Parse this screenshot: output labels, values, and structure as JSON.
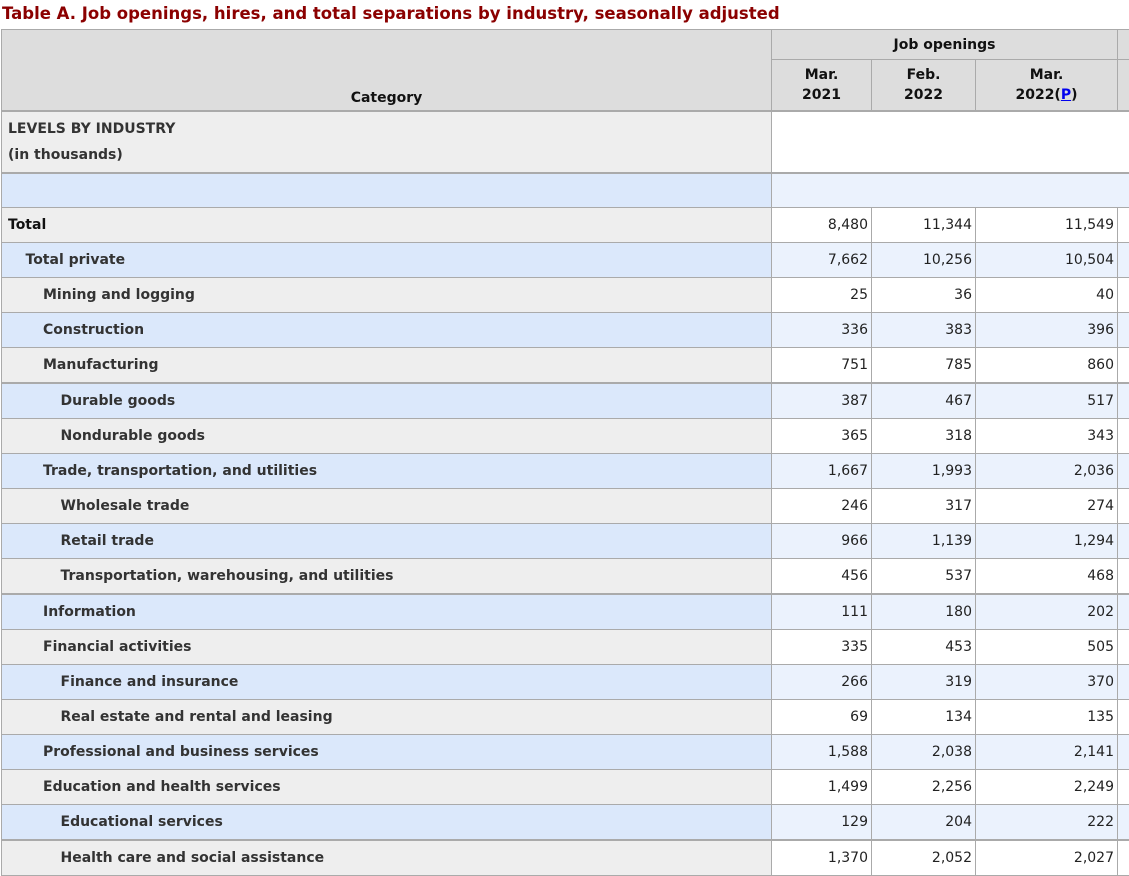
{
  "title": "Table A. Job openings, hires, and total separations by industry, seasonally adjusted",
  "header": {
    "category": "Category",
    "group": "Job openings",
    "columns": [
      {
        "line1": "Mar.",
        "line2": "2021"
      },
      {
        "line1": "Feb.",
        "line2": "2022"
      },
      {
        "line1": "Mar.",
        "line2": "2022(",
        "footnote": "P",
        "after": ")"
      }
    ]
  },
  "section": {
    "line1": "LEVELS BY INDUSTRY",
    "line2": "(in thousands)"
  },
  "rows": [
    {
      "label": "Total",
      "level": 0,
      "values": [
        "8,480",
        "11,344",
        "11,549"
      ]
    },
    {
      "label": "Total private",
      "level": 1,
      "values": [
        "7,662",
        "10,256",
        "10,504"
      ]
    },
    {
      "label": "Mining and logging",
      "level": 2,
      "values": [
        "25",
        "36",
        "40"
      ]
    },
    {
      "label": "Construction",
      "level": 2,
      "values": [
        "336",
        "383",
        "396"
      ]
    },
    {
      "label": "Manufacturing",
      "level": 2,
      "values": [
        "751",
        "785",
        "860"
      ]
    },
    {
      "label": "Durable goods",
      "level": 3,
      "values": [
        "387",
        "467",
        "517"
      ]
    },
    {
      "label": "Nondurable goods",
      "level": 3,
      "values": [
        "365",
        "318",
        "343"
      ]
    },
    {
      "label": "Trade, transportation, and utilities",
      "level": 2,
      "values": [
        "1,667",
        "1,993",
        "2,036"
      ]
    },
    {
      "label": "Wholesale trade",
      "level": 3,
      "values": [
        "246",
        "317",
        "274"
      ]
    },
    {
      "label": "Retail trade",
      "level": 3,
      "values": [
        "966",
        "1,139",
        "1,294"
      ]
    },
    {
      "label": "Transportation, warehousing, and utilities",
      "level": 3,
      "values": [
        "456",
        "537",
        "468"
      ]
    },
    {
      "label": "Information",
      "level": 2,
      "values": [
        "111",
        "180",
        "202"
      ]
    },
    {
      "label": "Financial activities",
      "level": 2,
      "values": [
        "335",
        "453",
        "505"
      ]
    },
    {
      "label": "Finance and insurance",
      "level": 3,
      "values": [
        "266",
        "319",
        "370"
      ]
    },
    {
      "label": "Real estate and rental and leasing",
      "level": 3,
      "values": [
        "69",
        "134",
        "135"
      ]
    },
    {
      "label": "Professional and business services",
      "level": 2,
      "values": [
        "1,588",
        "2,038",
        "2,141"
      ]
    },
    {
      "label": "Education and health services",
      "level": 2,
      "values": [
        "1,499",
        "2,256",
        "2,249"
      ]
    },
    {
      "label": "Educational services",
      "level": 3,
      "values": [
        "129",
        "204",
        "222"
      ]
    },
    {
      "label": "Health care and social assistance",
      "level": 3,
      "values": [
        "1,370",
        "2,052",
        "2,027"
      ]
    }
  ]
}
